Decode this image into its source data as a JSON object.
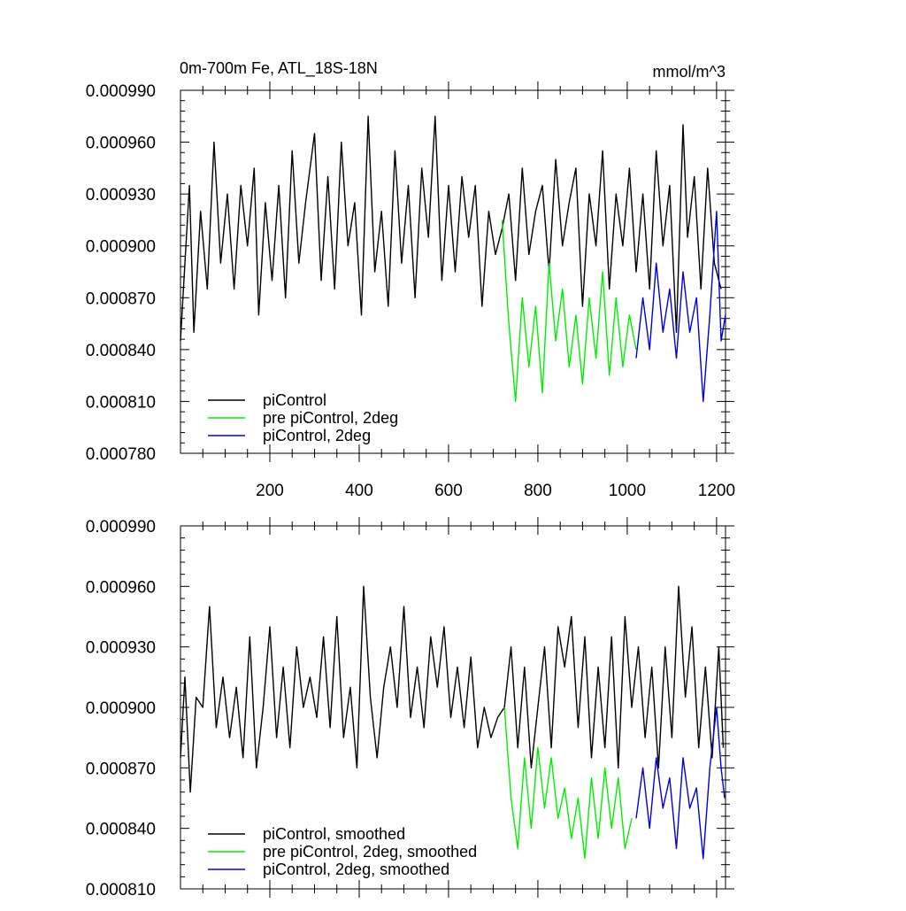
{
  "title": "0m-700m Fe, ATL_18S-18N",
  "units": "mmol/m^3",
  "colors": {
    "piControl": "#000000",
    "pre_piControl": "#00ee00",
    "piControl_2deg": "#0000dd"
  },
  "chart_data": [
    {
      "type": "line",
      "title": "0m-700m Fe, ATL_18S-18N",
      "units": "mmol/m^3",
      "xlim": [
        0,
        1220
      ],
      "ylim": [
        0.00078,
        0.00099
      ],
      "xticks": [
        200,
        400,
        600,
        800,
        1000,
        1200
      ],
      "xtick_labels": [
        "200",
        "400",
        "600",
        "800",
        "1000",
        "1200"
      ],
      "yticks": [
        0.00078,
        0.00081,
        0.00084,
        0.00087,
        0.0009,
        0.00093,
        0.00096,
        0.00099
      ],
      "ytick_labels": [
        "0.000780",
        "0.000810",
        "0.000840",
        "0.000870",
        "0.000900",
        "0.000930",
        "0.000960",
        "0.000990"
      ],
      "legend_position": "bottom-left",
      "series": [
        {
          "name": "piControl",
          "color": "#000000",
          "x": [
            0,
            10,
            20,
            30,
            45,
            60,
            75,
            90,
            105,
            120,
            135,
            150,
            165,
            175,
            190,
            205,
            220,
            235,
            250,
            265,
            280,
            300,
            315,
            330,
            345,
            360,
            375,
            390,
            405,
            420,
            435,
            450,
            465,
            480,
            495,
            510,
            525,
            540,
            555,
            570,
            585,
            600,
            615,
            630,
            645,
            660,
            675,
            690,
            705,
            720,
            735,
            750,
            765,
            780,
            795,
            810,
            825,
            840,
            855,
            870,
            885,
            900,
            915,
            930,
            945,
            960,
            975,
            990,
            1005,
            1020,
            1035,
            1050,
            1065,
            1080,
            1095,
            1110,
            1125,
            1135,
            1150,
            1165,
            1180,
            1195,
            1210
          ],
          "y": [
            0.000845,
            0.00089,
            0.000935,
            0.00085,
            0.00092,
            0.000875,
            0.00096,
            0.00089,
            0.00093,
            0.000875,
            0.000935,
            0.0009,
            0.000945,
            0.00086,
            0.000925,
            0.00088,
            0.000935,
            0.00087,
            0.000955,
            0.00089,
            0.000925,
            0.000965,
            0.00088,
            0.00094,
            0.000875,
            0.00096,
            0.0009,
            0.000925,
            0.00086,
            0.000975,
            0.000885,
            0.00092,
            0.000865,
            0.000955,
            0.00089,
            0.000935,
            0.00087,
            0.000945,
            0.000905,
            0.000975,
            0.00088,
            0.000935,
            0.000885,
            0.00094,
            0.000905,
            0.000935,
            0.000865,
            0.00092,
            0.000895,
            0.00091,
            0.00093,
            0.00088,
            0.000945,
            0.000895,
            0.00092,
            0.000935,
            0.000885,
            0.00095,
            0.0009,
            0.000925,
            0.000945,
            0.000865,
            0.00093,
            0.0009,
            0.000955,
            0.000875,
            0.00093,
            0.0009,
            0.000945,
            0.000885,
            0.00093,
            0.000875,
            0.000955,
            0.0009,
            0.000935,
            0.00085,
            0.00097,
            0.000905,
            0.00094,
            0.000875,
            0.000945,
            0.00089,
            0.000875
          ]
        },
        {
          "name": "pre piControl, 2deg",
          "color": "#00ee00",
          "x": [
            720,
            735,
            750,
            765,
            780,
            795,
            810,
            825,
            840,
            855,
            870,
            885,
            900,
            915,
            930,
            945,
            960,
            975,
            990,
            1005,
            1020
          ],
          "y": [
            0.000915,
            0.000855,
            0.00081,
            0.00087,
            0.00083,
            0.000865,
            0.000815,
            0.00089,
            0.000845,
            0.000875,
            0.00083,
            0.00086,
            0.00082,
            0.00087,
            0.000835,
            0.000885,
            0.000825,
            0.00087,
            0.00083,
            0.00086,
            0.00084
          ]
        },
        {
          "name": "piControl, 2deg",
          "color": "#0000dd",
          "x": [
            1020,
            1035,
            1050,
            1065,
            1080,
            1095,
            1110,
            1125,
            1140,
            1155,
            1170,
            1185,
            1200,
            1210,
            1220
          ],
          "y": [
            0.000835,
            0.00087,
            0.00084,
            0.00089,
            0.00085,
            0.000875,
            0.000835,
            0.000885,
            0.00085,
            0.00087,
            0.00081,
            0.00086,
            0.00092,
            0.000845,
            0.00086
          ]
        }
      ]
    },
    {
      "type": "line",
      "xlim": [
        0,
        1220
      ],
      "ylim": [
        0.00081,
        0.00099
      ],
      "xticks": [
        200,
        400,
        600,
        800,
        1000,
        1200
      ],
      "yticks": [
        0.00081,
        0.00084,
        0.00087,
        0.0009,
        0.00093,
        0.00096,
        0.00099
      ],
      "ytick_labels": [
        "0.000810",
        "0.000840",
        "0.000870",
        "0.000900",
        "0.000930",
        "0.000960",
        "0.000990"
      ],
      "legend_position": "bottom-left",
      "series": [
        {
          "name": "piControl, smoothed",
          "color": "#000000",
          "x": [
            0,
            10,
            22,
            35,
            50,
            65,
            80,
            95,
            110,
            125,
            140,
            155,
            170,
            185,
            200,
            215,
            230,
            245,
            260,
            275,
            290,
            305,
            320,
            335,
            350,
            365,
            380,
            395,
            410,
            425,
            440,
            455,
            470,
            485,
            500,
            515,
            530,
            545,
            560,
            575,
            590,
            605,
            620,
            635,
            650,
            665,
            680,
            695,
            710,
            725,
            740,
            755,
            770,
            785,
            800,
            815,
            830,
            845,
            860,
            875,
            890,
            905,
            920,
            935,
            950,
            965,
            980,
            995,
            1010,
            1025,
            1040,
            1055,
            1070,
            1085,
            1100,
            1115,
            1130,
            1145,
            1160,
            1175,
            1190,
            1205,
            1215
          ],
          "y": [
            0.000875,
            0.000915,
            0.000858,
            0.000905,
            0.0009,
            0.00095,
            0.00089,
            0.000915,
            0.000885,
            0.00091,
            0.000875,
            0.000935,
            0.00087,
            0.0009,
            0.00094,
            0.000885,
            0.00092,
            0.00088,
            0.00093,
            0.0009,
            0.000915,
            0.000895,
            0.000935,
            0.00089,
            0.000945,
            0.000885,
            0.00091,
            0.00087,
            0.00096,
            0.000905,
            0.000875,
            0.00091,
            0.00093,
            0.0009,
            0.00095,
            0.000895,
            0.00092,
            0.00089,
            0.000935,
            0.00091,
            0.00094,
            0.000895,
            0.00092,
            0.00089,
            0.000925,
            0.00088,
            0.0009,
            0.000885,
            0.000895,
            0.0009,
            0.00093,
            0.00088,
            0.00092,
            0.00087,
            0.0009,
            0.00093,
            0.00088,
            0.00094,
            0.00092,
            0.000945,
            0.00089,
            0.000935,
            0.000875,
            0.00092,
            0.00088,
            0.000935,
            0.00087,
            0.000945,
            0.0009,
            0.00093,
            0.000885,
            0.00092,
            0.00087,
            0.00093,
            0.000885,
            0.00096,
            0.000905,
            0.00094,
            0.00088,
            0.00092,
            0.000875,
            0.00093,
            0.00088
          ]
        },
        {
          "name": "pre piControl, 2deg, smoothed",
          "color": "#00ee00",
          "x": [
            725,
            740,
            755,
            770,
            785,
            800,
            815,
            830,
            845,
            860,
            875,
            890,
            905,
            920,
            935,
            950,
            965,
            980,
            995,
            1010
          ],
          "y": [
            0.0009,
            0.000855,
            0.00083,
            0.000875,
            0.00084,
            0.00088,
            0.00085,
            0.000875,
            0.000845,
            0.00086,
            0.000835,
            0.000855,
            0.000825,
            0.000865,
            0.000835,
            0.00087,
            0.00084,
            0.000865,
            0.00083,
            0.000845
          ]
        },
        {
          "name": "piControl, 2deg, smoothed",
          "color": "#0000dd",
          "x": [
            1020,
            1035,
            1050,
            1065,
            1080,
            1095,
            1110,
            1125,
            1140,
            1155,
            1170,
            1185,
            1200,
            1210,
            1218
          ],
          "y": [
            0.000845,
            0.00087,
            0.00084,
            0.000875,
            0.00085,
            0.000865,
            0.00083,
            0.000875,
            0.00085,
            0.00086,
            0.000825,
            0.00087,
            0.0009,
            0.00087,
            0.000855
          ]
        }
      ]
    }
  ]
}
